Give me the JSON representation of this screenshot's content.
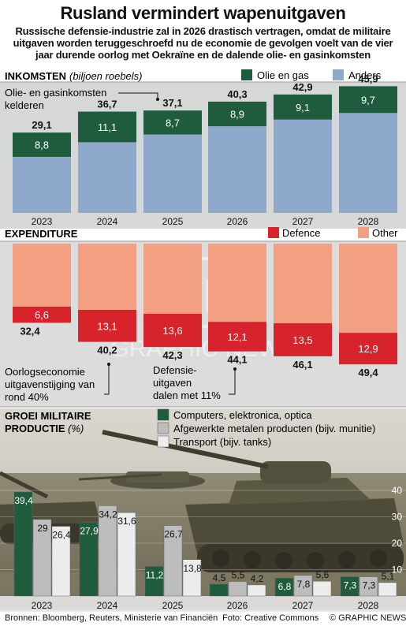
{
  "header": {
    "title": "Rusland vermindert wapenuitgaven",
    "subtitle": "Russische defensie-industrie zal in 2026 drastisch vertragen, omdat de militaire uitgaven worden teruggeschroefd nu de economie de gevolgen voelt van de vier jaar durende oorlog met Oekraïne en de dalende olie- en gasinkomsten"
  },
  "colors": {
    "oil_gas": "#1f5c3e",
    "anders": "#8ea9cb",
    "defence": "#d7242c",
    "other": "#f2a081",
    "computers": "#1f5c3e",
    "metal": "#bdbdbd",
    "transport": "#ececec",
    "divider": "#cccccc"
  },
  "watermark": {
    "text": "GRAPHIC NEWS",
    "logo": "GN"
  },
  "footer": {
    "sources": "Bronnen: Bloomberg, Reuters, Ministerie van Financiën",
    "photo": "Foto: Creative Commons",
    "credit": "© GRAPHIC NEWS"
  },
  "chart_data": [
    {
      "type": "bar",
      "stacked": true,
      "title": "INKOMSTEN",
      "title_suffix": "(biljoen roebels)",
      "categories": [
        "2023",
        "2024",
        "2025",
        "2026",
        "2027",
        "2028"
      ],
      "totals": [
        "29,1",
        "36,7",
        "37,1",
        "40,3",
        "42,9",
        "45,9"
      ],
      "series": [
        {
          "name": "Olie en gas",
          "values": [
            8.8,
            11.1,
            8.7,
            8.9,
            9.1,
            9.7
          ],
          "labels": [
            "8,8",
            "11,1",
            "8,7",
            "8,9",
            "9,1",
            "9,7"
          ]
        },
        {
          "name": "Anders",
          "values": [
            20.3,
            25.6,
            28.4,
            31.4,
            33.8,
            36.2
          ]
        }
      ],
      "annotation": "Olie- en gasinkomsten kelderen",
      "legend_position": "top-right",
      "ylim": [
        0,
        46
      ]
    },
    {
      "type": "bar",
      "stacked": true,
      "title": "EXPENDITURE",
      "categories": [
        "2023",
        "2024",
        "2025",
        "2026",
        "2027",
        "2028"
      ],
      "totals": [
        "32,4",
        "40,2",
        "42,3",
        "44,1",
        "46,1",
        "49,4"
      ],
      "series": [
        {
          "name": "Defence",
          "values": [
            6.6,
            13.1,
            13.6,
            12.1,
            13.5,
            12.9
          ],
          "labels": [
            "6,6",
            "13,1",
            "13,6",
            "12,1",
            "13,5",
            "12,9"
          ]
        },
        {
          "name": "Other",
          "values": [
            25.8,
            27.1,
            28.7,
            32.0,
            32.6,
            36.5
          ]
        }
      ],
      "annotations": [
        "Oorlogseconomie uitgavenstijging van rond 40%",
        "Defensie-uitgaven dalen met 11%"
      ],
      "legend_position": "top-right"
    },
    {
      "type": "bar",
      "title": "GROEI MILITAIRE PRODUCTIE",
      "title_suffix": "(%)",
      "categories": [
        "2023",
        "2024",
        "2025",
        "2026",
        "2027",
        "2028"
      ],
      "series": [
        {
          "name": "Computers, elektronica, optica",
          "values": [
            39.4,
            27.9,
            11.2,
            4.5,
            6.8,
            7.3
          ],
          "labels": [
            "39,4",
            "27,9",
            "11,2",
            "4,5",
            "6,8",
            "7,3"
          ]
        },
        {
          "name": "Afgewerkte metalen producten (bijv. munitie)",
          "values": [
            29,
            34.2,
            26.7,
            5.5,
            7.8,
            7.3
          ],
          "labels": [
            "29",
            "34,2",
            "26,7",
            "5,5",
            "7,8",
            "7,3"
          ]
        },
        {
          "name": "Transport (bijv. tanks)",
          "values": [
            26.4,
            31.6,
            13.8,
            4.2,
            5.6,
            5.1
          ],
          "labels": [
            "26,4",
            "31,6",
            "13,8",
            "4,2",
            "5,6",
            "5,1"
          ]
        }
      ],
      "y_ticks": [
        "10",
        "20",
        "30",
        "40"
      ],
      "ylim": [
        0,
        40
      ],
      "legend_position": "top"
    }
  ]
}
